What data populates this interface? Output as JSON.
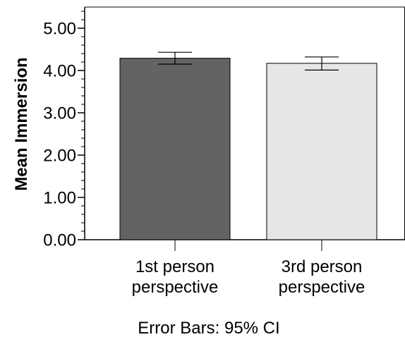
{
  "chart_data": {
    "type": "bar",
    "categories": [
      "1st person perspective",
      "3rd person perspective"
    ],
    "category_lines": [
      [
        "1st person",
        "perspective"
      ],
      [
        "3rd person",
        "perspective"
      ]
    ],
    "values": [
      4.29,
      4.17
    ],
    "error_bars": [
      {
        "low": 4.15,
        "high": 4.43
      },
      {
        "low": 4.01,
        "high": 4.32
      }
    ],
    "bar_colors": [
      "#636363",
      "#e6e6e6"
    ],
    "title": "",
    "xlabel": "",
    "ylabel": "Mean Immersion",
    "ylim": [
      0,
      5.5
    ],
    "yticks": [
      0,
      1,
      2,
      3,
      4,
      5
    ],
    "ytick_labels": [
      "0.00",
      "1.00",
      "2.00",
      "3.00",
      "4.00",
      "5.00"
    ],
    "minor_ticks_per_major": 5,
    "grid": false,
    "legend": "none",
    "footnote": "Error Bars: 95% CI"
  }
}
